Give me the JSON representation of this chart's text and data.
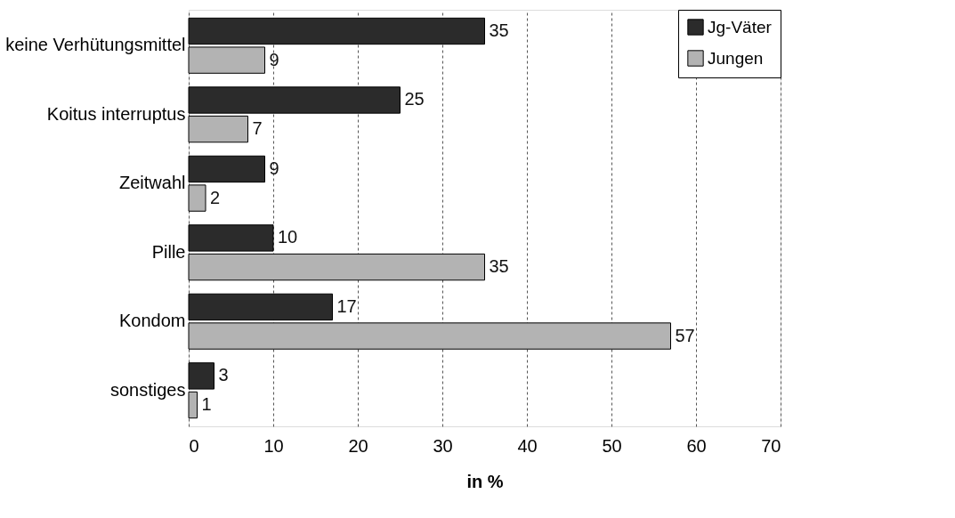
{
  "chart_data": {
    "type": "bar",
    "orientation": "horizontal",
    "xlabel": "in %",
    "categories": [
      "keine Verhütungsmittel",
      "Koitus interruptus",
      "Zeitwahl",
      "Pille",
      "Kondom",
      "sonstiges"
    ],
    "series": [
      {
        "name": "Jg-Väter",
        "color": "#2b2b2b",
        "values": [
          35,
          25,
          9,
          10,
          17,
          3
        ]
      },
      {
        "name": "Jungen",
        "color": "#b3b3b3",
        "values": [
          9,
          7,
          2,
          35,
          57,
          1
        ]
      }
    ],
    "xlim": [
      0,
      70
    ],
    "xticks": [
      0,
      10,
      20,
      30,
      40,
      50,
      60,
      70
    ],
    "grid": "x",
    "legend": "top right",
    "data_labels": true
  }
}
